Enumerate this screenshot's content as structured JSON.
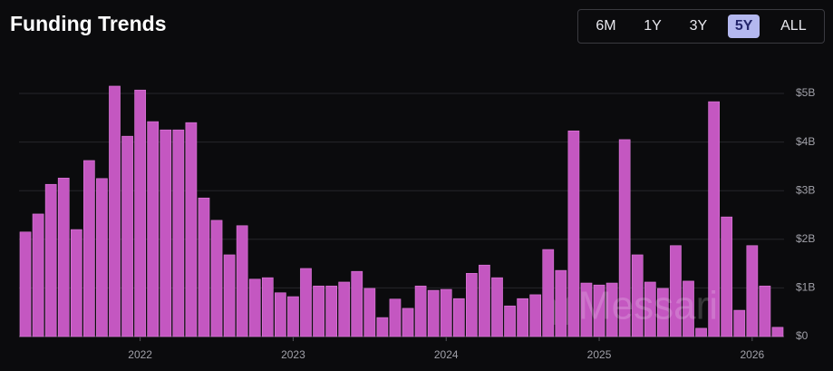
{
  "header": {
    "title": "Funding Trends",
    "ranges": [
      "6M",
      "1Y",
      "3Y",
      "5Y",
      "ALL"
    ],
    "active_range": "5Y"
  },
  "watermark": "Messari",
  "chart_data": {
    "type": "bar",
    "color": "#c457c1",
    "grid": true,
    "categories": [
      null,
      null,
      null,
      null,
      null,
      null,
      null,
      null,
      null,
      "2022",
      null,
      null,
      null,
      null,
      null,
      null,
      null,
      null,
      null,
      null,
      null,
      "2023",
      null,
      null,
      null,
      null,
      null,
      null,
      null,
      null,
      null,
      null,
      null,
      "2024",
      null,
      null,
      null,
      null,
      null,
      null,
      null,
      null,
      null,
      null,
      null,
      "2025",
      null,
      null,
      null,
      null,
      null,
      null,
      null,
      null,
      null,
      null,
      null,
      "2026",
      null,
      null
    ],
    "values": [
      2.15,
      2.52,
      3.13,
      3.26,
      2.2,
      3.62,
      3.25,
      5.15,
      4.12,
      5.07,
      4.42,
      4.25,
      4.25,
      4.4,
      2.85,
      2.39,
      1.68,
      2.28,
      1.18,
      1.21,
      0.9,
      0.82,
      1.4,
      1.04,
      1.04,
      1.12,
      1.34,
      0.99,
      0.39,
      0.77,
      0.58,
      1.04,
      0.95,
      0.97,
      0.78,
      1.3,
      1.47,
      1.21,
      0.63,
      0.78,
      0.86,
      1.79,
      1.36,
      4.23,
      1.1,
      1.06,
      1.1,
      4.05,
      1.68,
      1.12,
      0.99,
      1.87,
      1.14,
      0.17,
      4.83,
      2.46,
      0.54,
      1.87,
      1.04,
      0.19
    ],
    "ylim": [
      0,
      5
    ],
    "yticks": [
      {
        "value": 0,
        "label": "$0"
      },
      {
        "value": 1,
        "label": "$1B"
      },
      {
        "value": 2,
        "label": "$2B"
      },
      {
        "value": 3,
        "label": "$3B"
      },
      {
        "value": 4,
        "label": "$4B"
      },
      {
        "value": 5,
        "label": "$5B"
      }
    ]
  }
}
